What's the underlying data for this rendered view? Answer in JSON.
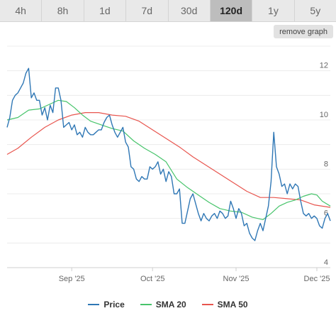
{
  "range_tabs": [
    {
      "label": "4h"
    },
    {
      "label": "8h"
    },
    {
      "label": "1d"
    },
    {
      "label": "7d"
    },
    {
      "label": "30d"
    },
    {
      "label": "120d",
      "active": true
    },
    {
      "label": "1y"
    },
    {
      "label": "5y"
    }
  ],
  "remove_graph_label": "remove graph",
  "colors": {
    "price": "#2f77b5",
    "sma20": "#47c46b",
    "sma50": "#e8554e"
  },
  "chart_data": {
    "type": "line",
    "title": "",
    "xlabel": "",
    "ylabel": "",
    "ylim": [
      4,
      13
    ],
    "xlim": [
      "2025-08-08",
      "2025-12-06"
    ],
    "y_ticks": [
      4,
      6,
      8,
      10,
      12
    ],
    "x_ticks": [
      {
        "date": "2025-09-01",
        "label": "Sep '25"
      },
      {
        "date": "2025-10-01",
        "label": "Oct '25"
      },
      {
        "date": "2025-11-01",
        "label": "Nov '25"
      },
      {
        "date": "2025-12-01",
        "label": "Dec '25"
      }
    ],
    "grid": true,
    "legend_position": "bottom",
    "series": [
      {
        "name": "Price",
        "points": [
          [
            "2025-08-08",
            9.7
          ],
          [
            "2025-08-09",
            10.1
          ],
          [
            "2025-08-10",
            10.8
          ],
          [
            "2025-08-11",
            11.0
          ],
          [
            "2025-08-12",
            11.1
          ],
          [
            "2025-08-13",
            11.3
          ],
          [
            "2025-08-14",
            11.5
          ],
          [
            "2025-08-15",
            11.9
          ],
          [
            "2025-08-16",
            12.1
          ],
          [
            "2025-08-17",
            10.9
          ],
          [
            "2025-08-18",
            11.1
          ],
          [
            "2025-08-19",
            10.8
          ],
          [
            "2025-08-20",
            10.8
          ],
          [
            "2025-08-21",
            10.2
          ],
          [
            "2025-08-22",
            10.5
          ],
          [
            "2025-08-23",
            10.0
          ],
          [
            "2025-08-24",
            10.6
          ],
          [
            "2025-08-25",
            10.3
          ],
          [
            "2025-08-26",
            11.3
          ],
          [
            "2025-08-27",
            11.3
          ],
          [
            "2025-08-28",
            10.8
          ],
          [
            "2025-08-29",
            9.7
          ],
          [
            "2025-08-30",
            9.8
          ],
          [
            "2025-08-31",
            9.9
          ],
          [
            "2025-09-01",
            9.6
          ],
          [
            "2025-09-02",
            9.8
          ],
          [
            "2025-09-03",
            9.4
          ],
          [
            "2025-09-04",
            9.5
          ],
          [
            "2025-09-05",
            9.3
          ],
          [
            "2025-09-06",
            9.7
          ],
          [
            "2025-09-07",
            9.5
          ],
          [
            "2025-09-08",
            9.4
          ],
          [
            "2025-09-09",
            9.4
          ],
          [
            "2025-09-10",
            9.5
          ],
          [
            "2025-09-11",
            9.6
          ],
          [
            "2025-09-12",
            9.6
          ],
          [
            "2025-09-13",
            9.9
          ],
          [
            "2025-09-14",
            10.1
          ],
          [
            "2025-09-15",
            10.2
          ],
          [
            "2025-09-16",
            9.8
          ],
          [
            "2025-09-17",
            9.5
          ],
          [
            "2025-09-18",
            9.3
          ],
          [
            "2025-09-19",
            9.5
          ],
          [
            "2025-09-20",
            9.7
          ],
          [
            "2025-09-21",
            9.1
          ],
          [
            "2025-09-22",
            8.9
          ],
          [
            "2025-09-23",
            8.1
          ],
          [
            "2025-09-24",
            8.0
          ],
          [
            "2025-09-25",
            7.6
          ],
          [
            "2025-09-26",
            7.5
          ],
          [
            "2025-09-27",
            7.7
          ],
          [
            "2025-09-28",
            7.6
          ],
          [
            "2025-09-29",
            7.6
          ],
          [
            "2025-09-30",
            8.1
          ],
          [
            "2025-10-01",
            8.0
          ],
          [
            "2025-10-02",
            8.1
          ],
          [
            "2025-10-03",
            8.3
          ],
          [
            "2025-10-04",
            7.8
          ],
          [
            "2025-10-05",
            8.0
          ],
          [
            "2025-10-06",
            7.5
          ],
          [
            "2025-10-07",
            7.9
          ],
          [
            "2025-10-08",
            7.7
          ],
          [
            "2025-10-09",
            7.0
          ],
          [
            "2025-10-10",
            7.0
          ],
          [
            "2025-10-11",
            7.2
          ],
          [
            "2025-10-12",
            5.8
          ],
          [
            "2025-10-13",
            5.8
          ],
          [
            "2025-10-14",
            6.3
          ],
          [
            "2025-10-15",
            6.8
          ],
          [
            "2025-10-16",
            7.0
          ],
          [
            "2025-10-17",
            6.6
          ],
          [
            "2025-10-18",
            6.2
          ],
          [
            "2025-10-19",
            5.9
          ],
          [
            "2025-10-20",
            6.2
          ],
          [
            "2025-10-21",
            6.0
          ],
          [
            "2025-10-22",
            5.9
          ],
          [
            "2025-10-23",
            6.1
          ],
          [
            "2025-10-24",
            6.2
          ],
          [
            "2025-10-25",
            6.0
          ],
          [
            "2025-10-26",
            6.3
          ],
          [
            "2025-10-27",
            6.2
          ],
          [
            "2025-10-28",
            6.0
          ],
          [
            "2025-10-29",
            6.1
          ],
          [
            "2025-10-30",
            6.7
          ],
          [
            "2025-10-31",
            6.4
          ],
          [
            "2025-11-01",
            6.0
          ],
          [
            "2025-11-02",
            6.4
          ],
          [
            "2025-11-03",
            6.2
          ],
          [
            "2025-11-04",
            5.7
          ],
          [
            "2025-11-05",
            5.8
          ],
          [
            "2025-11-06",
            5.4
          ],
          [
            "2025-11-07",
            5.2
          ],
          [
            "2025-11-08",
            5.1
          ],
          [
            "2025-11-09",
            5.5
          ],
          [
            "2025-11-10",
            5.8
          ],
          [
            "2025-11-11",
            5.5
          ],
          [
            "2025-11-12",
            6.0
          ],
          [
            "2025-11-13",
            6.5
          ],
          [
            "2025-11-14",
            7.5
          ],
          [
            "2025-11-15",
            9.5
          ],
          [
            "2025-11-16",
            8.1
          ],
          [
            "2025-11-17",
            7.8
          ],
          [
            "2025-11-18",
            7.3
          ],
          [
            "2025-11-19",
            7.4
          ],
          [
            "2025-11-20",
            7.0
          ],
          [
            "2025-11-21",
            7.4
          ],
          [
            "2025-11-22",
            7.2
          ],
          [
            "2025-11-23",
            7.4
          ],
          [
            "2025-11-24",
            7.3
          ],
          [
            "2025-11-25",
            6.7
          ],
          [
            "2025-11-26",
            6.2
          ],
          [
            "2025-11-27",
            6.1
          ],
          [
            "2025-11-28",
            6.2
          ],
          [
            "2025-11-29",
            6.0
          ],
          [
            "2025-11-30",
            6.1
          ],
          [
            "2025-12-01",
            6.0
          ],
          [
            "2025-12-02",
            5.7
          ],
          [
            "2025-12-03",
            5.6
          ],
          [
            "2025-12-04",
            6.0
          ],
          [
            "2025-12-05",
            6.2
          ],
          [
            "2025-12-06",
            5.9
          ]
        ]
      },
      {
        "name": "SMA 20",
        "points": [
          [
            "2025-08-08",
            10.0
          ],
          [
            "2025-08-12",
            10.1
          ],
          [
            "2025-08-16",
            10.4
          ],
          [
            "2025-08-20",
            10.45
          ],
          [
            "2025-08-24",
            10.65
          ],
          [
            "2025-08-27",
            10.8
          ],
          [
            "2025-08-30",
            10.75
          ],
          [
            "2025-09-02",
            10.5
          ],
          [
            "2025-09-05",
            10.2
          ],
          [
            "2025-09-08",
            9.95
          ],
          [
            "2025-09-12",
            9.8
          ],
          [
            "2025-09-16",
            9.65
          ],
          [
            "2025-09-20",
            9.55
          ],
          [
            "2025-09-24",
            9.15
          ],
          [
            "2025-09-28",
            8.85
          ],
          [
            "2025-10-02",
            8.6
          ],
          [
            "2025-10-06",
            8.3
          ],
          [
            "2025-10-10",
            7.6
          ],
          [
            "2025-10-14",
            7.25
          ],
          [
            "2025-10-18",
            6.95
          ],
          [
            "2025-10-22",
            6.65
          ],
          [
            "2025-10-26",
            6.4
          ],
          [
            "2025-10-30",
            6.3
          ],
          [
            "2025-11-03",
            6.25
          ],
          [
            "2025-11-07",
            6.05
          ],
          [
            "2025-11-11",
            5.95
          ],
          [
            "2025-11-14",
            6.2
          ],
          [
            "2025-11-17",
            6.5
          ],
          [
            "2025-11-20",
            6.65
          ],
          [
            "2025-11-23",
            6.75
          ],
          [
            "2025-11-26",
            6.9
          ],
          [
            "2025-11-29",
            7.0
          ],
          [
            "2025-12-01",
            6.95
          ],
          [
            "2025-12-03",
            6.7
          ],
          [
            "2025-12-06",
            6.5
          ]
        ]
      },
      {
        "name": "SMA 50",
        "points": [
          [
            "2025-08-08",
            8.6
          ],
          [
            "2025-08-12",
            8.85
          ],
          [
            "2025-08-17",
            9.3
          ],
          [
            "2025-08-22",
            9.7
          ],
          [
            "2025-08-27",
            10.0
          ],
          [
            "2025-09-01",
            10.2
          ],
          [
            "2025-09-06",
            10.3
          ],
          [
            "2025-09-11",
            10.3
          ],
          [
            "2025-09-16",
            10.2
          ],
          [
            "2025-09-21",
            10.15
          ],
          [
            "2025-09-26",
            9.95
          ],
          [
            "2025-10-01",
            9.6
          ],
          [
            "2025-10-06",
            9.25
          ],
          [
            "2025-10-11",
            8.9
          ],
          [
            "2025-10-16",
            8.5
          ],
          [
            "2025-10-21",
            8.15
          ],
          [
            "2025-10-26",
            7.8
          ],
          [
            "2025-10-31",
            7.45
          ],
          [
            "2025-11-05",
            7.1
          ],
          [
            "2025-11-10",
            6.85
          ],
          [
            "2025-11-15",
            6.85
          ],
          [
            "2025-11-20",
            6.8
          ],
          [
            "2025-11-25",
            6.75
          ],
          [
            "2025-11-30",
            6.55
          ],
          [
            "2025-12-06",
            6.45
          ]
        ]
      }
    ]
  }
}
